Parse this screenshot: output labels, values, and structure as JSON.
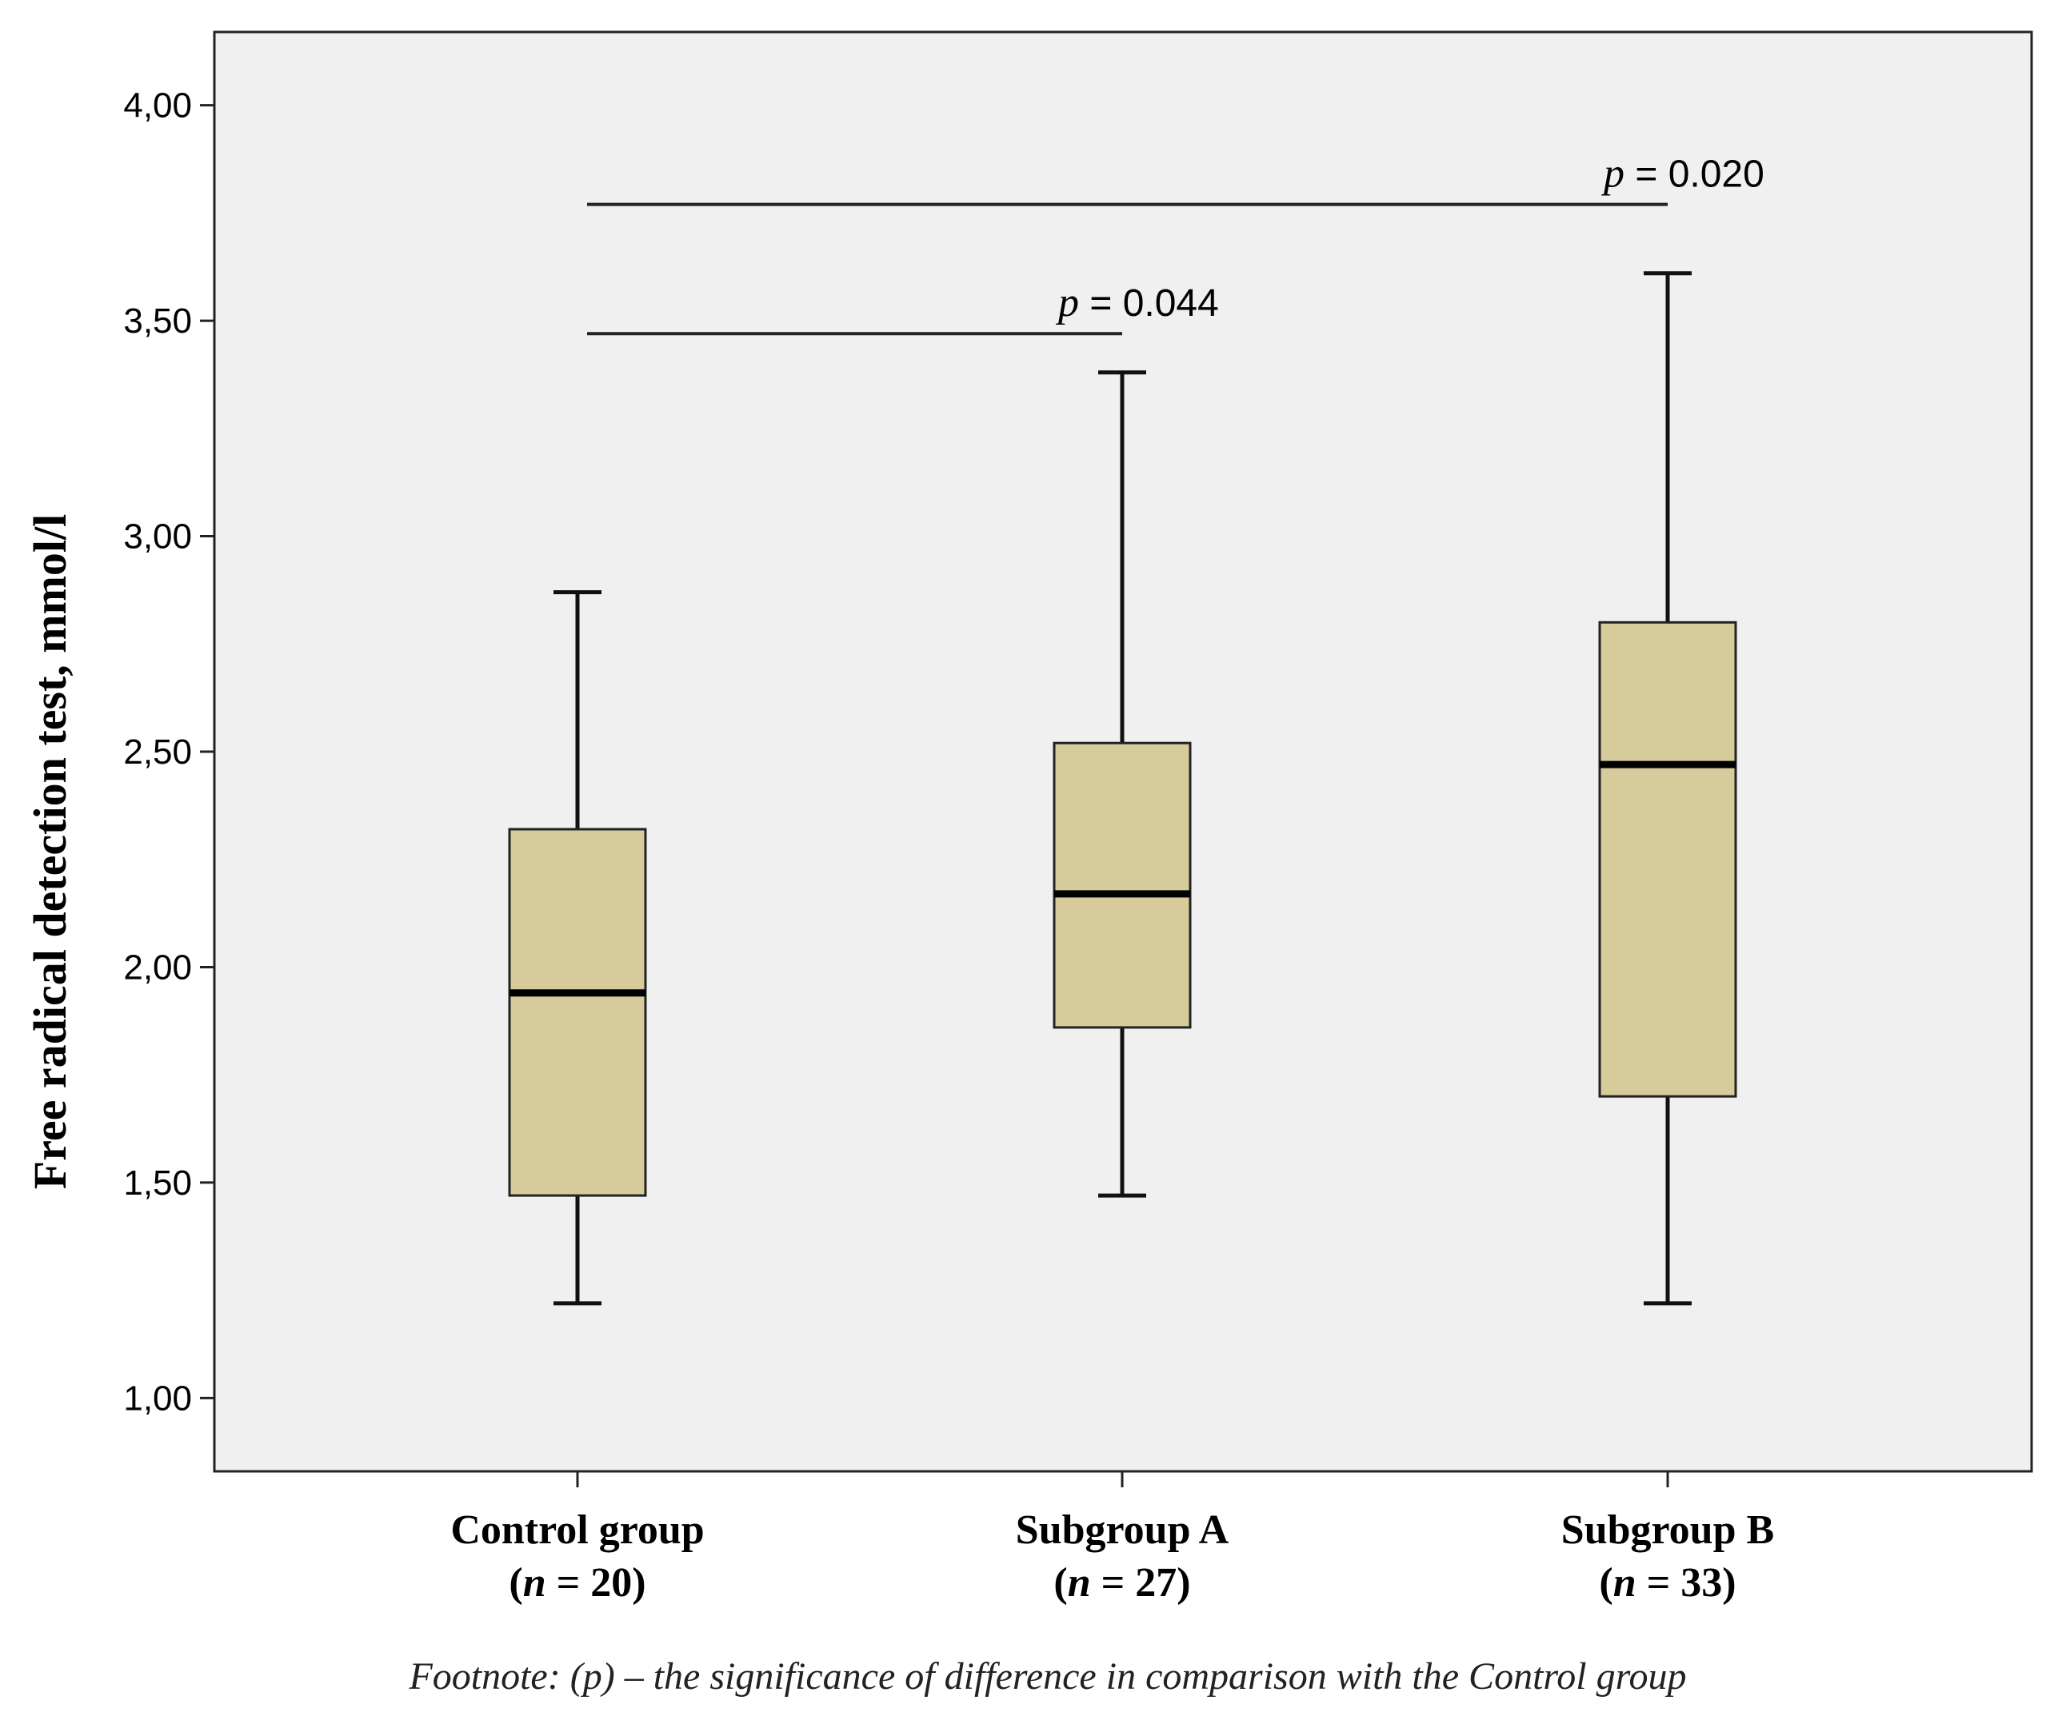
{
  "chart_data": {
    "type": "boxplot",
    "ylabel": "Free radical detection test, mmol/l",
    "ylim": [
      0.83,
      4.17
    ],
    "yticks": [
      "1,00",
      "1,50",
      "2,00",
      "2,50",
      "3,00",
      "3,50",
      "4,00"
    ],
    "ytick_values": [
      1.0,
      1.5,
      2.0,
      2.5,
      3.0,
      3.5,
      4.0
    ],
    "box_color": "#d6cb9a",
    "plot_bg": "#f0f0f0",
    "categories": [
      {
        "name": "Control group",
        "n_label": "20",
        "whisker_low": 1.22,
        "q1": 1.47,
        "median": 1.94,
        "q3": 2.32,
        "whisker_high": 2.87
      },
      {
        "name": "Subgroup A",
        "n_label": "27",
        "whisker_low": 1.47,
        "q1": 1.86,
        "median": 2.17,
        "q3": 2.52,
        "whisker_high": 3.38
      },
      {
        "name": "Subgroup B",
        "n_label": "33",
        "whisker_low": 1.22,
        "q1": 1.7,
        "median": 2.47,
        "q3": 2.8,
        "whisker_high": 3.61
      }
    ],
    "significance": [
      {
        "from": 0,
        "to": 2,
        "y": 3.77,
        "p_symbol": "p",
        "p_value": " = 0.020"
      },
      {
        "from": 0,
        "to": 1,
        "y": 3.47,
        "p_symbol": "p",
        "p_value": " = 0.044"
      }
    ],
    "footnote": "Footnote:   (p) – the significance of difference in comparison with the Control group"
  }
}
